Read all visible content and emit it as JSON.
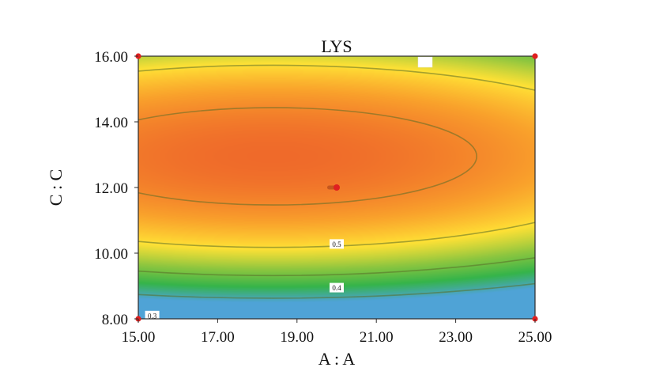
{
  "chart_data": {
    "type": "heatmap",
    "title": "LYS",
    "xlabel": "A : A",
    "ylabel": "C : C",
    "xlim": [
      15.0,
      25.0
    ],
    "ylim": [
      8.0,
      16.0
    ],
    "xticks": [
      15.0,
      17.0,
      19.0,
      21.0,
      23.0,
      25.0
    ],
    "yticks": [
      8.0,
      10.0,
      12.0,
      14.0,
      16.0
    ],
    "xtick_labels": [
      "15.00",
      "17.00",
      "19.00",
      "21.00",
      "23.00",
      "25.00"
    ],
    "ytick_labels": [
      "8.00",
      "10.00",
      "12.00",
      "14.00",
      "16.00"
    ],
    "surface": {
      "optimum": {
        "x": 18.4,
        "y": 12.95
      },
      "peak_value": 0.64,
      "x_decay": 0.00152,
      "y_decay": 0.0182
    },
    "contours": [
      {
        "level": 0.5,
        "label": "0.5",
        "label_at": {
          "x": 20.0,
          "y": 10.28
        }
      },
      {
        "level": 0.4,
        "label": "0.4",
        "label_at": {
          "x": 20.0,
          "y": 8.95
        }
      },
      {
        "level": 0.3,
        "label": "0.3",
        "label_at": {
          "x": 15.35,
          "y": 8.1
        }
      },
      {
        "level": 0.6,
        "label": "",
        "label_at": null
      }
    ],
    "design_points": [
      {
        "x": 15.0,
        "y": 16.0
      },
      {
        "x": 25.0,
        "y": 16.0
      },
      {
        "x": 15.0,
        "y": 8.0
      },
      {
        "x": 25.0,
        "y": 8.0
      },
      {
        "x": 20.0,
        "y": 12.0
      }
    ],
    "center_replicates": 5,
    "colormap": [
      "#4fa3d6",
      "#35b44a",
      "#8dc63f",
      "#ffe135",
      "#f9a12b",
      "#ef6a2a"
    ],
    "design_point_color": "#e02020"
  }
}
